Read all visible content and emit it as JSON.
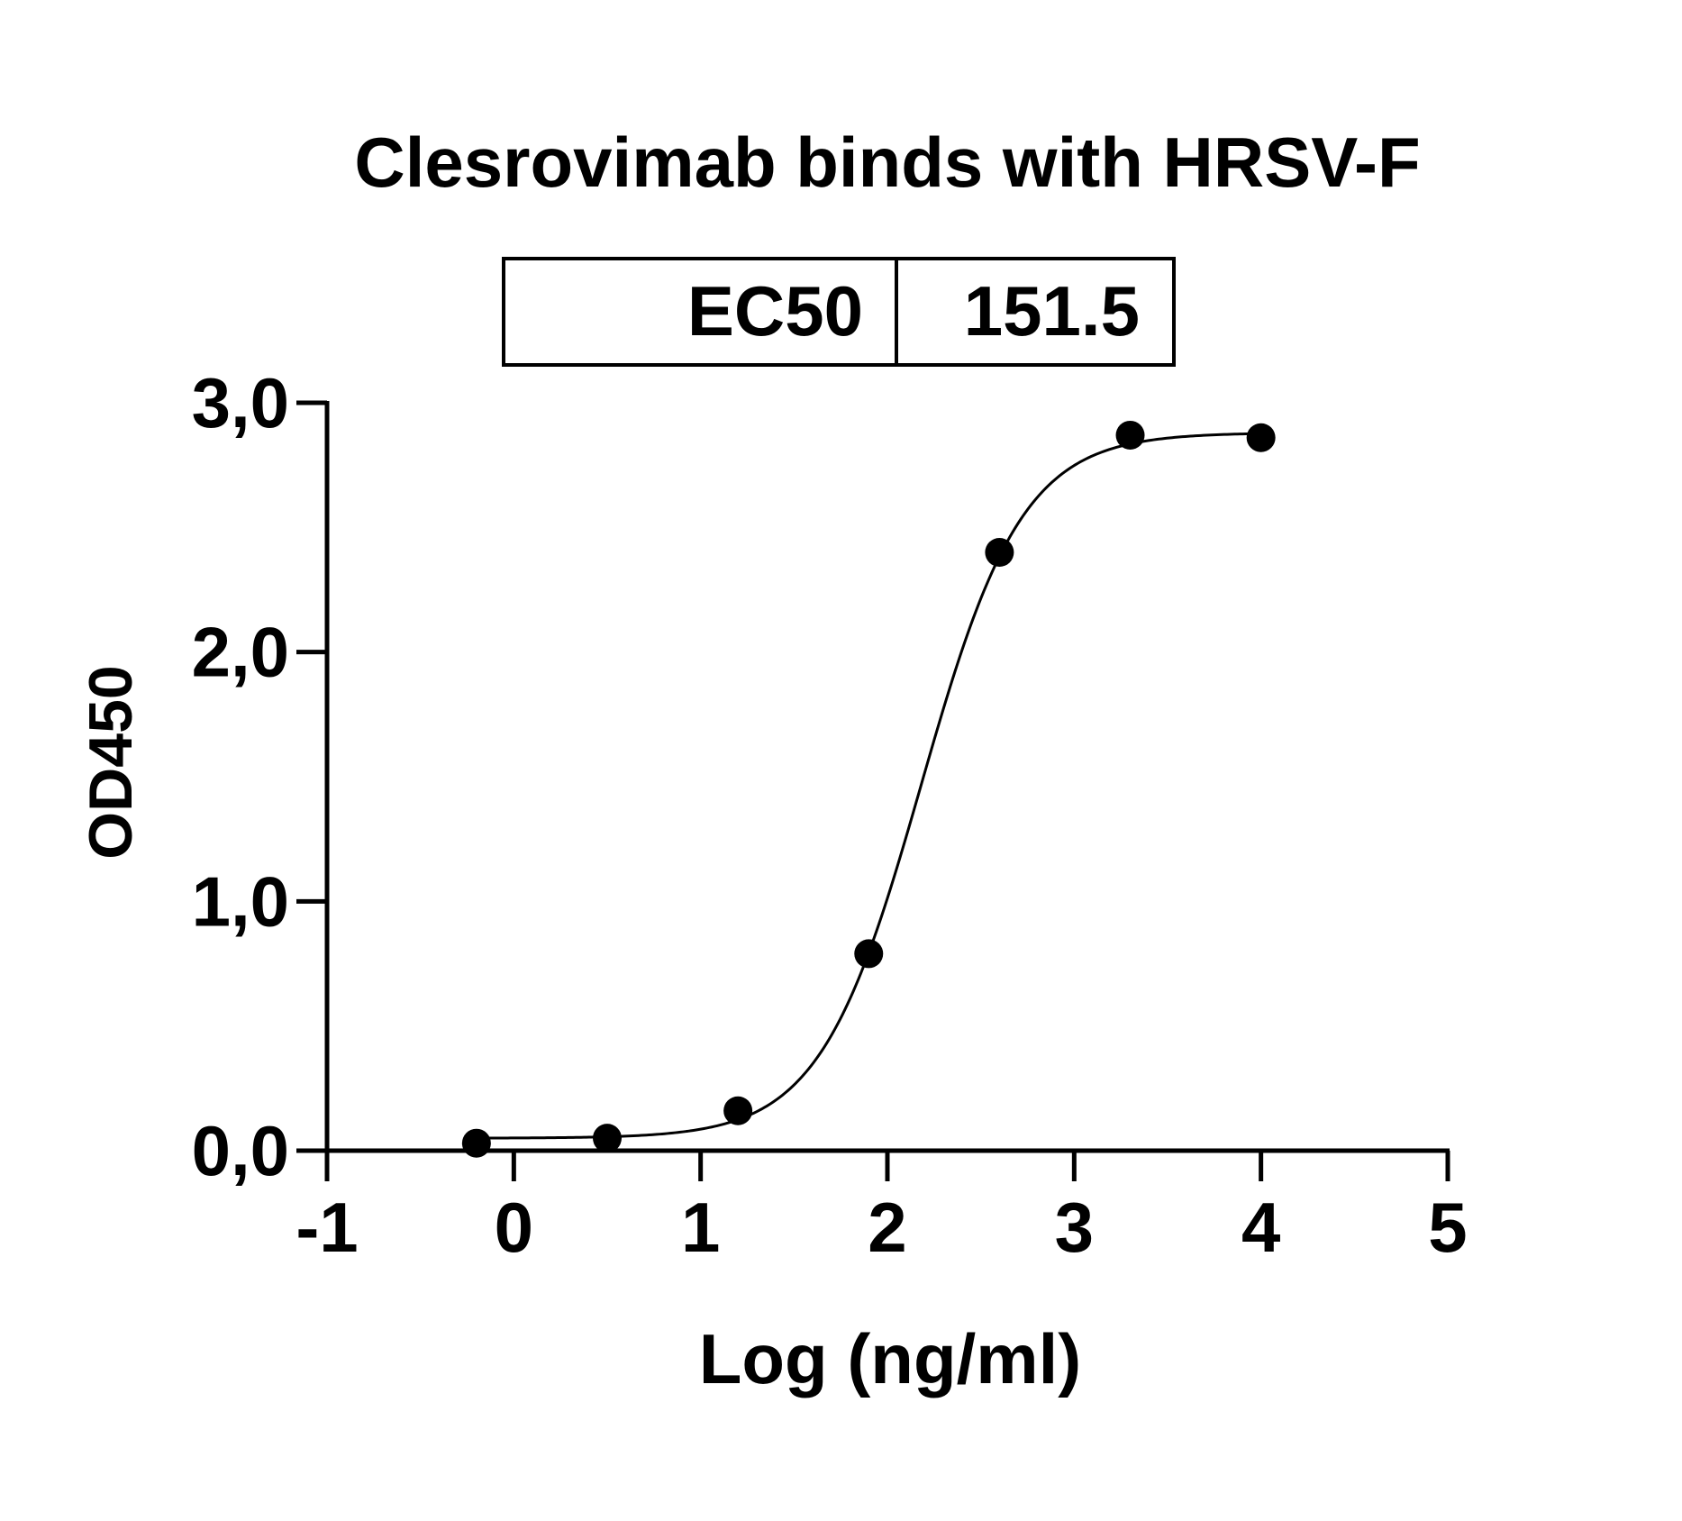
{
  "chart_data": {
    "type": "scatter",
    "title": "Clesrovimab binds with HRSV-F",
    "xlabel": "Log (ng/ml)",
    "ylabel": "OD450",
    "xlim": [
      -1,
      5
    ],
    "ylim": [
      0,
      3
    ],
    "x_ticks": [
      -1,
      0,
      1,
      2,
      3,
      4,
      5
    ],
    "x_tick_labels": [
      "-1",
      "0",
      "1",
      "2",
      "3",
      "4",
      "5"
    ],
    "y_ticks": [
      0,
      1,
      2,
      3
    ],
    "y_tick_labels": [
      "0,0",
      "1,0",
      "2,0",
      "3,0"
    ],
    "grid": false,
    "series": [
      {
        "x": [
          -0.2,
          0.5,
          1.2,
          1.9,
          2.6,
          3.3,
          4.0
        ],
        "y": [
          0.03,
          0.05,
          0.16,
          0.79,
          2.4,
          2.87,
          2.86
        ]
      }
    ],
    "fit_curve": {
      "model": "4PL",
      "bottom": 0.05,
      "top": 2.88,
      "log_ec50": 2.18,
      "hill": 1.6,
      "x_range": [
        -0.2,
        4.0
      ]
    },
    "table": {
      "label": "EC50",
      "value": "151.5"
    },
    "colors": {
      "marker": "#000000",
      "line": "#000000",
      "background": "#ffffff"
    }
  }
}
